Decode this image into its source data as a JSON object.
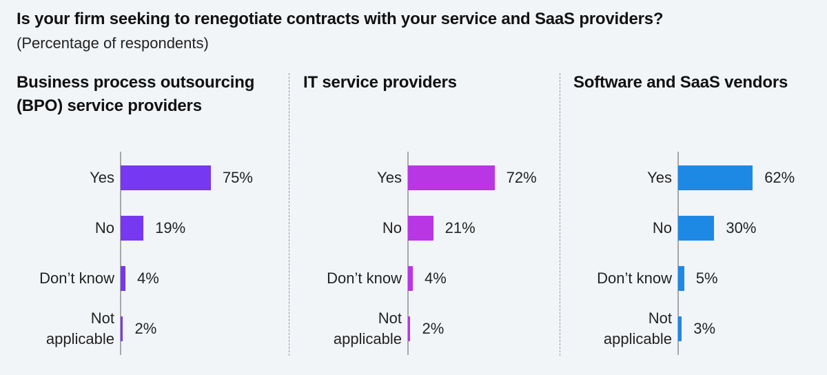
{
  "title": "Is your firm seeking to renegotiate contracts with your service and SaaS providers?",
  "subtitle": "(Percentage of respondents)",
  "chart_data": [
    {
      "type": "bar",
      "orientation": "horizontal",
      "title": "Business process outsourcing (BPO) service providers",
      "categories": [
        "Yes",
        "No",
        "Don’t know",
        "Not applicable"
      ],
      "values": [
        75,
        19,
        4,
        2
      ],
      "value_labels": [
        "75%",
        "19%",
        "4%",
        "2%"
      ],
      "color": "#7638f0",
      "grid": false
    },
    {
      "type": "bar",
      "orientation": "horizontal",
      "title": "IT service providers",
      "categories": [
        "Yes",
        "No",
        "Don’t know",
        "Not applicable"
      ],
      "values": [
        72,
        21,
        4,
        2
      ],
      "value_labels": [
        "72%",
        "21%",
        "4%",
        "2%"
      ],
      "color": "#b836e3",
      "grid": false
    },
    {
      "type": "bar",
      "orientation": "horizontal",
      "title": "Software and SaaS vendors",
      "categories": [
        "Yes",
        "No",
        "Don’t know",
        "Not applicable"
      ],
      "values": [
        62,
        30,
        5,
        3
      ],
      "value_labels": [
        "62%",
        "30%",
        "5%",
        "3%"
      ],
      "color": "#1e88e5",
      "grid": false
    }
  ]
}
